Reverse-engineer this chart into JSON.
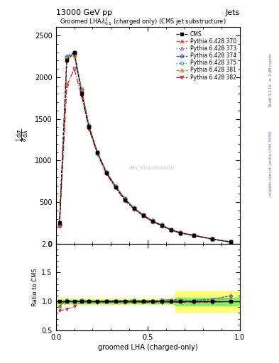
{
  "title_left": "13000 GeV pp",
  "title_right": "Jets",
  "plot_title": "Groomed LHA$\\lambda^{1}_{0.5}$ (charged only) (CMS jet substructure)",
  "ylabel_main_lines": [
    "mathrm d$^2$N",
    "mathrm d$\\sigma$  mathrm d lambda"
  ],
  "ylabel_ratio": "Ratio to CMS",
  "xlabel": "groomed LHA (charged-only)",
  "right_label_top": "Rivet 3.1.10, $\\geq$ 2.4M events",
  "right_label_bot": "mcplots.cern.ch [arXiv:1306.3436]",
  "cms_watermark": "CMS_2021-01920187",
  "x_bins": [
    0.0,
    0.04,
    0.08,
    0.12,
    0.16,
    0.2,
    0.25,
    0.3,
    0.35,
    0.4,
    0.45,
    0.5,
    0.55,
    0.6,
    0.65,
    0.7,
    0.8,
    0.9,
    1.0
  ],
  "cms_y": [
    250,
    2200,
    2300,
    1800,
    1400,
    1100,
    850,
    680,
    530,
    420,
    340,
    270,
    220,
    165,
    130,
    100,
    55,
    20
  ],
  "p370_y": [
    230,
    2250,
    2280,
    1850,
    1420,
    1100,
    860,
    690,
    540,
    430,
    345,
    275,
    225,
    170,
    133,
    102,
    57,
    22
  ],
  "p373_y": [
    230,
    2250,
    2290,
    1850,
    1420,
    1100,
    860,
    690,
    540,
    430,
    345,
    275,
    225,
    170,
    133,
    102,
    57,
    22
  ],
  "p374_y": [
    230,
    2250,
    2300,
    1850,
    1420,
    1100,
    860,
    690,
    540,
    430,
    345,
    275,
    225,
    170,
    133,
    102,
    57,
    22
  ],
  "p375_y": [
    230,
    2250,
    2300,
    1850,
    1420,
    1100,
    860,
    690,
    540,
    430,
    345,
    275,
    225,
    170,
    133,
    102,
    57,
    22
  ],
  "p381_y": [
    230,
    2230,
    2260,
    1840,
    1410,
    1095,
    855,
    685,
    535,
    425,
    342,
    272,
    222,
    168,
    130,
    100,
    56,
    21
  ],
  "p382_y": [
    210,
    1900,
    2100,
    1780,
    1380,
    1080,
    840,
    670,
    520,
    415,
    335,
    265,
    215,
    163,
    128,
    98,
    54,
    20
  ],
  "colors": {
    "cms": "#000000",
    "p370": "#e8392a",
    "p373": "#9b59b6",
    "p374": "#3344cc",
    "p375": "#44aaaa",
    "p381": "#b8860b",
    "p382": "#cc1133"
  },
  "linestyles": {
    "p370": "--",
    "p373": ":",
    "p374": "--",
    "p375": ":",
    "p381": "--",
    "p382": "-."
  },
  "markers": {
    "cms": "s",
    "p370": "^",
    "p373": "^",
    "p374": "o",
    "p375": "o",
    "p381": "^",
    "p382": "v"
  },
  "ylim_main": [
    0,
    2600
  ],
  "yticks_main": [
    0,
    500,
    1000,
    1500,
    2000,
    2500
  ],
  "ylim_ratio": [
    0.5,
    2.0
  ],
  "yticks_ratio": [
    0.5,
    1.0,
    1.5,
    2.0
  ],
  "xlim": [
    0.0,
    1.0
  ],
  "xticks": [
    0.0,
    0.5,
    1.0
  ]
}
